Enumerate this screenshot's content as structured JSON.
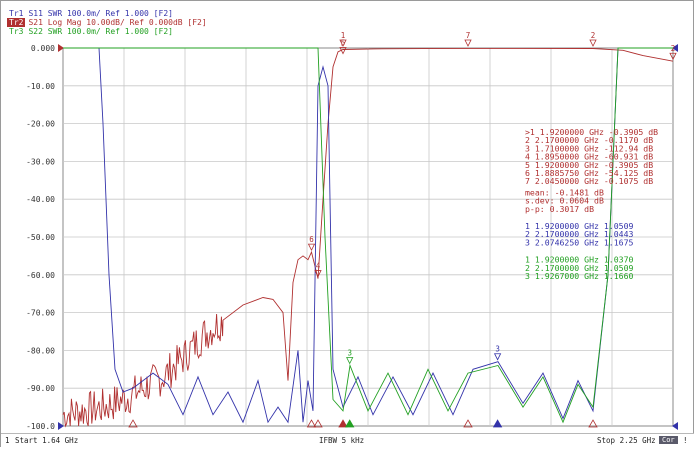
{
  "traces": [
    {
      "id": "Tr1",
      "label": "S11 SWR 100.0m/ Ref 1.000 [F2]",
      "color": "#3333aa",
      "active": false
    },
    {
      "id": "Tr2",
      "label": "S21 Log Mag 10.00dB/ Ref 0.000dB [F2]",
      "color": "#b03030",
      "active": true
    },
    {
      "id": "Tr3",
      "label": "S22 SWR 100.0m/ Ref 1.000 [F2]",
      "color": "#22a022",
      "active": false
    }
  ],
  "y_tick_labels": [
    "0.000",
    "-10.00",
    "-20.00",
    "-30.00",
    "-40.00",
    "-50.00",
    "-60.00",
    "-70.00",
    "-80.00",
    "-90.00",
    "-100.0"
  ],
  "marker_table": {
    "s21": [
      {
        "n": ">1",
        "freq": "1.9200000 GHz",
        "val": "-0.3905 dB"
      },
      {
        "n": "2",
        "freq": "2.1700000 GHz",
        "val": "-0.1170 dB"
      },
      {
        "n": "3",
        "freq": "1.7100000 GHz",
        "val": "-112.94 dB"
      },
      {
        "n": "4",
        "freq": "1.8950000 GHz",
        "val": "-60.931 dB"
      },
      {
        "n": "5",
        "freq": "1.9200000 GHz",
        "val": "-0.3905 dB"
      },
      {
        "n": "6",
        "freq": "1.8885750 GHz",
        "val": "-54.125 dB"
      },
      {
        "n": "7",
        "freq": "2.0450000 GHz",
        "val": "-0.1075 dB"
      }
    ],
    "stats": [
      {
        "label": "mean:",
        "val": "-0.1481 dB"
      },
      {
        "label": "s.dev:",
        "val": "0.0604 dB"
      },
      {
        "label": "p-p:",
        "val": "0.3017 dB"
      }
    ],
    "s11": [
      {
        "n": "1",
        "freq": "1.9200000 GHz",
        "val": "1.0509"
      },
      {
        "n": "2",
        "freq": "2.1700000 GHz",
        "val": "1.0443"
      },
      {
        "n": "3",
        "freq": "2.0746250 GHz",
        "val": "1.1675"
      }
    ],
    "s22": [
      {
        "n": "1",
        "freq": "1.9200000 GHz",
        "val": "1.0370"
      },
      {
        "n": "2",
        "freq": "2.1700000 GHz",
        "val": "1.0509"
      },
      {
        "n": "3",
        "freq": "1.9267000 GHz",
        "val": "1.1660"
      }
    ]
  },
  "status": {
    "channel": "1",
    "start": "Start 1.64 GHz",
    "ifbw": "IFBW 5 kHz",
    "stop": "Stop 2.25 GHz",
    "cor": "Cor",
    "exclam": "!"
  },
  "chart_data": {
    "type": "line",
    "x_range": [
      1.64,
      2.25
    ],
    "x_unit": "GHz",
    "ylim": [
      -100,
      0
    ],
    "grid": true,
    "colors": {
      "s11": "#3333aa",
      "s21": "#b03030",
      "s22": "#22a022",
      "grid": "#c8c8c8"
    },
    "series": [
      {
        "name": "S21 Log Mag",
        "points": [
          [
            1.64,
            -97
          ],
          [
            1.66,
            -96
          ],
          [
            1.68,
            -95
          ],
          [
            1.7,
            -93
          ],
          [
            1.72,
            -90
          ],
          [
            1.74,
            -87
          ],
          [
            1.76,
            -82
          ],
          [
            1.78,
            -76
          ],
          [
            1.8,
            -72
          ],
          [
            1.82,
            -68
          ],
          [
            1.84,
            -66
          ],
          [
            1.85,
            -66.5
          ],
          [
            1.86,
            -70
          ],
          [
            1.865,
            -88
          ],
          [
            1.87,
            -62
          ],
          [
            1.875,
            -56
          ],
          [
            1.88,
            -55
          ],
          [
            1.885,
            -56
          ],
          [
            1.8885,
            -54
          ],
          [
            1.895,
            -61
          ],
          [
            1.9,
            -40
          ],
          [
            1.905,
            -20
          ],
          [
            1.91,
            -5
          ],
          [
            1.915,
            -1
          ],
          [
            1.92,
            -0.39
          ],
          [
            1.95,
            -0.25
          ],
          [
            2.0,
            -0.15
          ],
          [
            2.045,
            -0.11
          ],
          [
            2.1,
            -0.1
          ],
          [
            2.17,
            -0.12
          ],
          [
            2.2,
            -0.6
          ],
          [
            2.22,
            -2
          ],
          [
            2.25,
            -3.5
          ]
        ]
      },
      {
        "name": "S11 SWR",
        "points": [
          [
            1.64,
            0
          ],
          [
            1.676,
            0
          ],
          [
            1.68,
            -20
          ],
          [
            1.686,
            -60
          ],
          [
            1.692,
            -85
          ],
          [
            1.7,
            -91
          ],
          [
            1.71,
            -90
          ],
          [
            1.72,
            -88
          ],
          [
            1.73,
            -86
          ],
          [
            1.745,
            -89
          ],
          [
            1.76,
            -97
          ],
          [
            1.775,
            -87
          ],
          [
            1.79,
            -97
          ],
          [
            1.805,
            -91
          ],
          [
            1.82,
            -99
          ],
          [
            1.835,
            -88
          ],
          [
            1.845,
            -99
          ],
          [
            1.855,
            -95
          ],
          [
            1.865,
            -99
          ],
          [
            1.875,
            -80
          ],
          [
            1.88,
            -99
          ],
          [
            1.885,
            -88
          ],
          [
            1.89,
            -96
          ],
          [
            1.895,
            -10
          ],
          [
            1.9,
            -5
          ],
          [
            1.905,
            -10
          ],
          [
            1.91,
            -85
          ],
          [
            1.92,
            -95
          ],
          [
            1.935,
            -87
          ],
          [
            1.95,
            -97
          ],
          [
            1.97,
            -87
          ],
          [
            1.99,
            -97
          ],
          [
            2.01,
            -86
          ],
          [
            2.03,
            -97
          ],
          [
            2.05,
            -85
          ],
          [
            2.075,
            -83
          ],
          [
            2.1,
            -94
          ],
          [
            2.12,
            -86
          ],
          [
            2.14,
            -98
          ],
          [
            2.155,
            -88
          ],
          [
            2.17,
            -96
          ],
          [
            2.185,
            -60
          ],
          [
            2.195,
            0
          ],
          [
            2.25,
            0
          ]
        ]
      },
      {
        "name": "S22 SWR",
        "points": [
          [
            1.64,
            0
          ],
          [
            1.895,
            0
          ],
          [
            1.902,
            -50
          ],
          [
            1.91,
            -93
          ],
          [
            1.92,
            -96
          ],
          [
            1.927,
            -84
          ],
          [
            1.945,
            -96
          ],
          [
            1.965,
            -86
          ],
          [
            1.985,
            -97
          ],
          [
            2.005,
            -85
          ],
          [
            2.025,
            -96
          ],
          [
            2.045,
            -86
          ],
          [
            2.075,
            -84
          ],
          [
            2.1,
            -95
          ],
          [
            2.12,
            -87
          ],
          [
            2.14,
            -99
          ],
          [
            2.155,
            -89
          ],
          [
            2.17,
            -95
          ],
          [
            2.185,
            -60
          ],
          [
            2.195,
            0
          ],
          [
            2.25,
            0
          ]
        ]
      }
    ]
  }
}
